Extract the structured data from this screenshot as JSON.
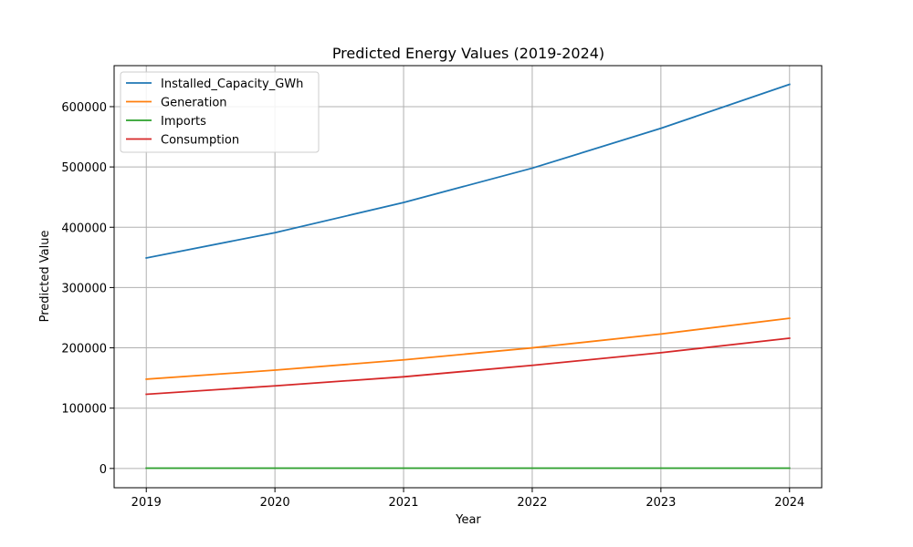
{
  "chart_data": {
    "type": "line",
    "title": "Predicted Energy Values (2019-2024)",
    "xlabel": "Year",
    "ylabel": "Predicted Value",
    "x": [
      2019,
      2020,
      2021,
      2022,
      2023,
      2024
    ],
    "xlim": [
      2018.75,
      2024.25
    ],
    "ylim": [
      -32000,
      668000
    ],
    "yticks": [
      0,
      100000,
      200000,
      300000,
      400000,
      500000,
      600000
    ],
    "grid": true,
    "legend_position": "top-left",
    "series": [
      {
        "name": "Installed_Capacity_GWh",
        "color": "#1f77b4",
        "values": [
          349000,
          391000,
          441000,
          498000,
          564000,
          637000
        ]
      },
      {
        "name": "Generation",
        "color": "#ff7f0e",
        "values": [
          148000,
          163000,
          180000,
          200000,
          223000,
          249000
        ]
      },
      {
        "name": "Imports",
        "color": "#2ca02c",
        "values": [
          500,
          500,
          500,
          500,
          500,
          500
        ]
      },
      {
        "name": "Consumption",
        "color": "#d62728",
        "values": [
          123000,
          137000,
          152000,
          171000,
          192000,
          216000
        ]
      }
    ]
  }
}
